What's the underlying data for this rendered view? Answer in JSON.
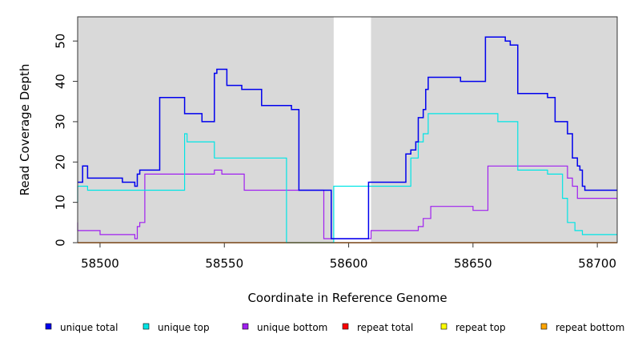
{
  "chart_data": {
    "type": "line",
    "title": "",
    "xlabel": "Coordinate in Reference Genome",
    "ylabel": "Read Coverage Depth",
    "xlim": [
      58491,
      58708
    ],
    "ylim": [
      0,
      56
    ],
    "x_ticks": [
      58500,
      58550,
      58600,
      58650,
      58700
    ],
    "y_ticks": [
      0,
      10,
      20,
      30,
      40,
      50
    ],
    "x_tick_labels": [
      "58500",
      "58550",
      "58600",
      "58650",
      "58700"
    ],
    "y_tick_labels": [
      "0",
      "10",
      "20",
      "30",
      "40",
      "50"
    ],
    "background_color": "#d9d9d9",
    "gap_region": [
      58594,
      58609
    ],
    "step": true,
    "legend_position": "bottom",
    "series": [
      {
        "name": "unique total",
        "color": "#0000ee",
        "x": [
          58491,
          58493,
          58495,
          58500,
          58504,
          58509,
          58514,
          58515,
          58516,
          58518,
          58524,
          58534,
          58535,
          58536,
          58541,
          58546,
          58547,
          58549,
          58551,
          58556,
          58557,
          58560,
          58565,
          58575,
          58577,
          58580,
          58585,
          58590,
          58593,
          58594,
          58597,
          58600,
          58604,
          58608,
          58609,
          58612,
          58617,
          58620,
          58623,
          58625,
          58627,
          58628,
          58630,
          58631,
          58632,
          58635,
          58636,
          58640,
          58645,
          58650,
          58655,
          58660,
          58663,
          58665,
          58668,
          58670,
          58671,
          58673,
          58678,
          58680,
          58683,
          58687,
          58688,
          58690,
          58691,
          58692,
          58693,
          58694,
          58695,
          58696,
          58700,
          58705,
          58708
        ],
        "y": [
          15,
          15,
          19,
          16,
          16,
          16,
          15,
          14,
          17,
          18,
          18,
          36,
          32,
          32,
          32,
          30,
          42,
          43,
          43,
          39,
          39,
          38,
          38,
          34,
          34,
          33,
          13,
          13,
          13,
          1,
          1,
          1,
          1,
          1,
          15,
          15,
          15,
          15,
          15,
          22,
          23,
          25,
          31,
          33,
          38,
          41,
          41,
          41,
          41,
          40,
          40,
          51,
          51,
          50,
          49,
          37,
          37,
          37,
          37,
          37,
          36,
          30,
          30,
          27,
          21,
          21,
          19,
          18,
          14,
          13,
          13,
          13,
          13
        ]
      },
      {
        "name": "unique top",
        "color": "#00e5e5",
        "x": [
          58491,
          58495,
          58500,
          58534,
          58535,
          58546,
          58556,
          58575,
          58585,
          58590,
          58594,
          58609,
          58625,
          58628,
          58630,
          58632,
          58635,
          58640,
          58660,
          58668,
          58670,
          58680,
          58686,
          58688,
          58691,
          58694,
          58696,
          58700,
          58708
        ],
        "y": [
          10,
          14,
          13,
          13,
          27,
          25,
          21,
          21,
          0,
          0,
          0,
          14,
          14,
          21,
          25,
          27,
          32,
          32,
          32,
          30,
          18,
          18,
          17,
          11,
          5,
          3,
          2,
          2,
          2
        ]
      },
      {
        "name": "unique bottom",
        "color": "#a020f0",
        "x": [
          58491,
          58500,
          58514,
          58515,
          58516,
          58518,
          58546,
          58549,
          58558,
          58575,
          58585,
          58590,
          58594,
          58609,
          58628,
          58630,
          58633,
          58636,
          58650,
          58656,
          58662,
          58665,
          58688,
          58690,
          58692,
          58695,
          58700,
          58708
        ],
        "y": [
          5,
          3,
          2,
          1,
          4,
          5,
          17,
          18,
          17,
          13,
          13,
          13,
          1,
          1,
          3,
          4,
          6,
          9,
          9,
          8,
          19,
          19,
          19,
          16,
          14,
          11,
          11,
          11
        ]
      },
      {
        "name": "repeat total",
        "color": "#ff0000",
        "x": [
          58491,
          58708
        ],
        "y": [
          0,
          0
        ]
      },
      {
        "name": "repeat top",
        "color": "#ffff00",
        "x": [
          58491,
          58708
        ],
        "y": [
          0,
          0
        ]
      },
      {
        "name": "repeat bottom",
        "color": "#ffa500",
        "x": [
          58491,
          58708
        ],
        "y": [
          0,
          0
        ]
      }
    ]
  }
}
